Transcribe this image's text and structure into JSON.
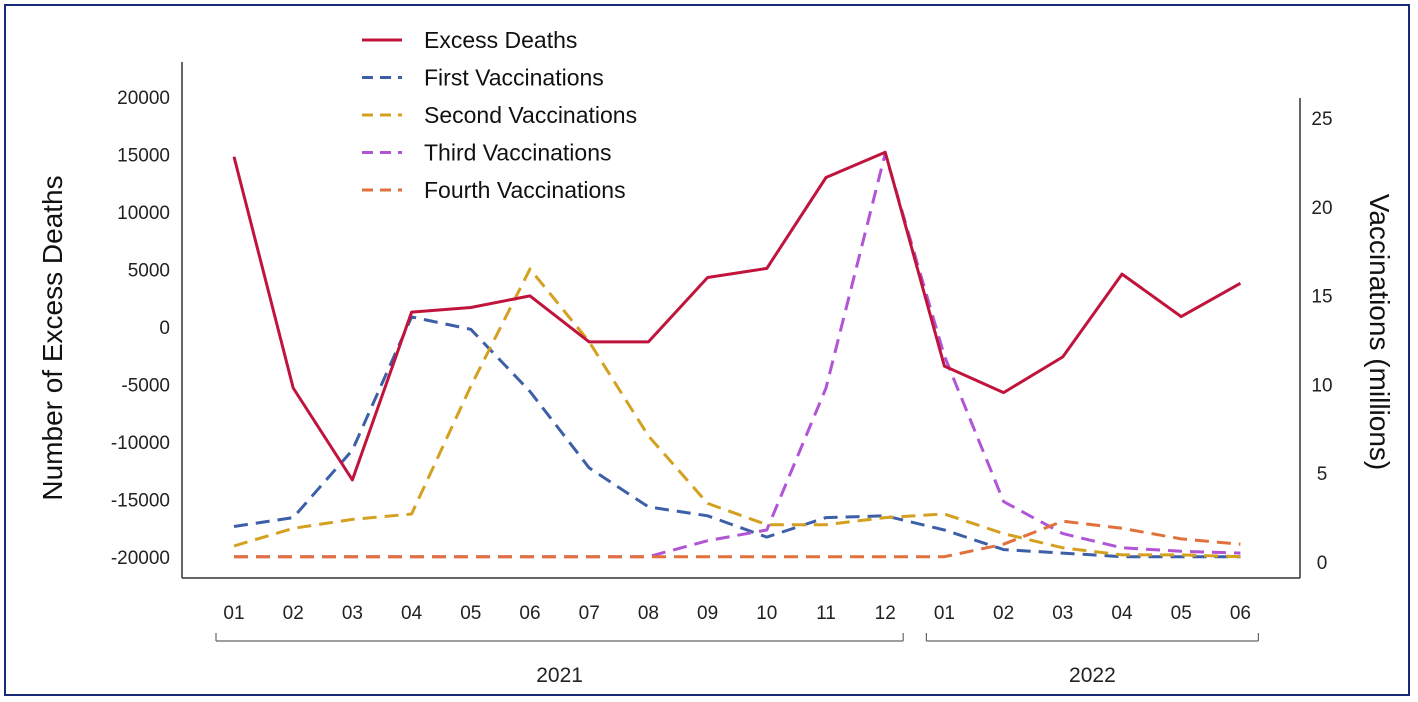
{
  "chart_data": {
    "type": "line",
    "title": "",
    "xlabel": "",
    "ylabel_left": "Number of Excess Deaths",
    "ylabel_right": "Vaccinations (millions)",
    "categories": [
      "01",
      "02",
      "03",
      "04",
      "05",
      "06",
      "07",
      "08",
      "09",
      "10",
      "11",
      "12",
      "01",
      "02",
      "03",
      "04",
      "05",
      "06"
    ],
    "year_groups": [
      {
        "label": "2021",
        "from": 0,
        "to": 11
      },
      {
        "label": "2022",
        "from": 12,
        "to": 17
      }
    ],
    "y_left": {
      "range": [
        -20000,
        20000
      ],
      "ticks": [
        20000,
        15000,
        10000,
        5000,
        0,
        -5000,
        -10000,
        -15000,
        -20000
      ]
    },
    "y_right": {
      "range": [
        0,
        25
      ],
      "ticks": [
        25,
        20,
        15,
        10,
        5,
        0
      ]
    },
    "legend_position": "top-left",
    "grid": false,
    "series": [
      {
        "name": "Excess Deaths",
        "axis": "left",
        "style": "solid",
        "color": "#c0143c",
        "values": [
          14800,
          -5300,
          -13300,
          1300,
          1700,
          2700,
          -1300,
          -1300,
          4300,
          5100,
          13000,
          15200,
          -3400,
          -5700,
          -2600,
          4600,
          900,
          3800
        ]
      },
      {
        "name": "First Vaccinations",
        "axis": "left_scale_right",
        "style": "dashed",
        "color": "#3d5fa8",
        "values": [
          2.0,
          2.5,
          6.3,
          13.8,
          13.1,
          9.6,
          5.3,
          3.1,
          2.6,
          1.4,
          2.5,
          2.6,
          1.8,
          0.7,
          0.5,
          0.3,
          0.3,
          0.3
        ]
      },
      {
        "name": "Second Vaccinations",
        "axis": "right",
        "style": "dashed",
        "color": "#d4a020",
        "values": [
          0.9,
          1.9,
          2.4,
          2.7,
          9.9,
          16.5,
          12.4,
          7.1,
          3.3,
          2.1,
          2.1,
          2.5,
          2.7,
          1.6,
          0.8,
          0.4,
          0.4,
          0.3
        ]
      },
      {
        "name": "Third Vaccinations",
        "axis": "right",
        "style": "dashed",
        "color": "#b155d6",
        "values": [
          0.3,
          0.3,
          0.3,
          0.3,
          0.3,
          0.3,
          0.3,
          0.3,
          1.2,
          1.8,
          9.8,
          23.0,
          11.6,
          3.4,
          1.6,
          0.8,
          0.6,
          0.5
        ]
      },
      {
        "name": "Fourth Vaccinations",
        "axis": "right",
        "style": "dashed",
        "color": "#e0703c",
        "values": [
          0.3,
          0.3,
          0.3,
          0.3,
          0.3,
          0.3,
          0.3,
          0.3,
          0.3,
          0.3,
          0.3,
          0.3,
          0.3,
          1.0,
          2.3,
          1.9,
          1.3,
          1.0
        ]
      }
    ]
  }
}
